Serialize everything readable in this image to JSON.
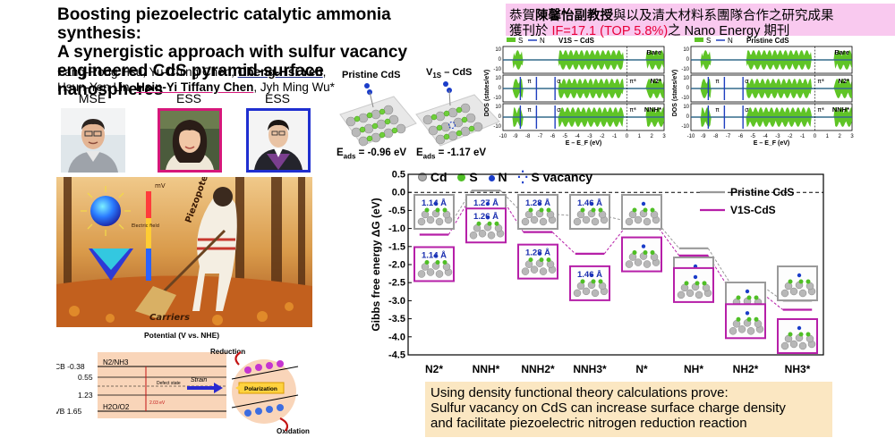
{
  "title": {
    "line1": "Boosting piezoelectric catalytic ammonia synthesis:",
    "line2": "A synergistic approach with sulfur vacancy",
    "line3": "engineered CdS pyramid-surface nanospheres"
  },
  "authors": {
    "a1": "Fang-Rong Hsu, Yu-Ching Chen, ",
    "a2": "Cheng-Hsi Yeh",
    "a3": ",",
    "a4": "Hsun-Yen Lin, ",
    "a5": "Hsin-Yi Tiffany Chen",
    "a6": ", Jyh Ming Wu*"
  },
  "affiliations": [
    "MSE",
    "ESS",
    "ESS"
  ],
  "banner": {
    "pre": "恭賀",
    "bold": "陳馨怡副教授",
    "post": "與以及清大材料系團隊合作之研究成果",
    "line2_pre": "獲刊於 ",
    "line2_red": "IF=17.1 (TOP 5.8%)",
    "line2_post": "之 Nano Energy 期刊"
  },
  "structures": {
    "pristine_label": "Pristine CdS",
    "vacancy_label": "V",
    "vacancy_sub": "1S",
    "vacancy_tail": " – CdS",
    "eads1": "E",
    "eads1_sub": "ads",
    "eads1_val": " = -0.96 eV",
    "eads2_val": " = -1.17 eV"
  },
  "dos": {
    "legend_s": "S",
    "legend_n": "N",
    "left_title": "V1S – CdS",
    "right_title": "Pristine CdS",
    "ylabel": "DOS (states/eV)",
    "xlabel": "E – E_F (eV)",
    "x_ticks": [
      "-10",
      "-9",
      "-8",
      "-7",
      "-6",
      "-5",
      "-4",
      "-3",
      "-2",
      "-1",
      "0",
      "1",
      "2",
      "3"
    ],
    "y_ticks": [
      "10",
      "0",
      "-10"
    ],
    "panels": [
      "Bare",
      "N2*",
      "NNH*"
    ],
    "orb_pi": "π",
    "orb_sigma": "σ",
    "orb_pistar": "π*",
    "colors": {
      "s": "#5fc426",
      "n": "#1f3fbf"
    }
  },
  "illustration": {
    "piezo": "Piezopotential",
    "carriers": "Carriers",
    "mv": "mV",
    "surface": "Electric field"
  },
  "band": {
    "title": "Potential (V vs. NHE)",
    "cb": "CB -0.38",
    "level2": "0.55",
    "level3": "1.23",
    "vb": "VB 1.65",
    "n2": "N2/NH3",
    "h2o": "H2O/O2",
    "defect": "Defect state",
    "gap": "2.03 eV",
    "strain": "Strain",
    "reduction": "Reduction",
    "oxidation": "Oxidation",
    "polarization": "Polarization"
  },
  "gibbs_legend": {
    "cd": "Cd",
    "s": "S",
    "n": "N",
    "vac": "S vacancy"
  },
  "chart_data": {
    "type": "line",
    "ylabel": "Gibbs free energy ΔG (eV)",
    "xlabel": "",
    "categories": [
      "N2*",
      "NNH*",
      "NNH2*",
      "NNH3*",
      "N*",
      "NH*",
      "NH2*",
      "NH3*"
    ],
    "ylim": [
      -4.5,
      0.5
    ],
    "yticks": [
      "0.5",
      "0.0",
      "-0.5",
      "-1.0",
      "-1.5",
      "-2.0",
      "-2.5",
      "-3.0",
      "-3.5",
      "-4.0",
      "-4.5"
    ],
    "series": [
      {
        "name": "Pristine CdS",
        "color": "#999999",
        "values": [
          -0.96,
          0.05,
          -0.6,
          -0.65,
          -0.8,
          -1.55,
          -2.55,
          -3.0
        ]
      },
      {
        "name": "V1S-CdS",
        "color": "#b61fa8",
        "values": [
          -1.17,
          -0.1,
          -1.1,
          -1.7,
          -0.9,
          -1.75,
          -2.75,
          -3.25
        ]
      }
    ],
    "bond_top": [
      "1.14 Å",
      "1.27 Å",
      "1.28 Å",
      "1.46 Å"
    ],
    "bond_bottom": [
      "1.14 Å",
      "1.26 Å",
      "1.28 Å",
      "1.46 Å"
    ]
  },
  "conclusion": {
    "l1": "Using density functional theory calculations prove:",
    "l2": "Sulfur vacancy on CdS can increase surface charge density",
    "l3": "and facilitate piezoelectric nitrogen reduction reaction"
  }
}
